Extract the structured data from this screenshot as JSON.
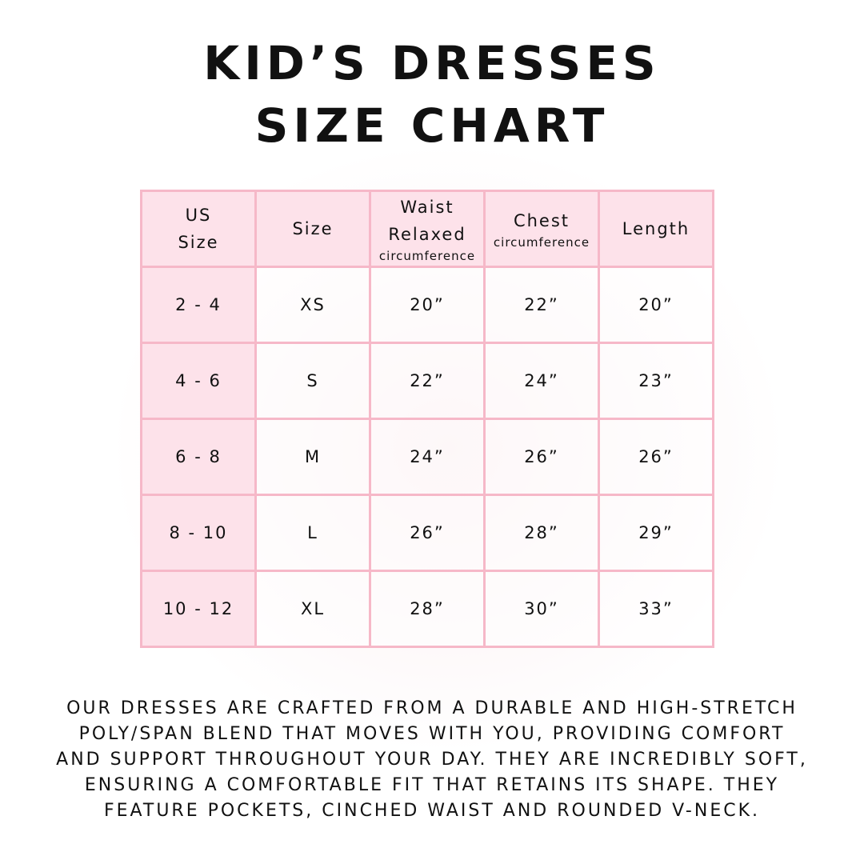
{
  "header": {
    "title_lines": [
      "KID’S DRESSES",
      "SIZE CHART"
    ]
  },
  "table": {
    "columns": [
      {
        "title_lines": [
          "US",
          "Size"
        ]
      },
      {
        "title_lines": [
          "Size"
        ]
      },
      {
        "title_lines": [
          "Waist",
          "Relaxed"
        ],
        "note": "circumference"
      },
      {
        "title_lines": [
          "Chest"
        ],
        "note": "circumference"
      },
      {
        "title_lines": [
          "Length"
        ]
      }
    ],
    "rows": [
      [
        "2 - 4",
        "XS",
        "20”",
        "22”",
        "20”"
      ],
      [
        "4 - 6",
        "S",
        "22”",
        "24”",
        "23”"
      ],
      [
        "6 - 8",
        "M",
        "24”",
        "26”",
        "26”"
      ],
      [
        "8 - 10",
        "L",
        "26”",
        "28”",
        "29”"
      ],
      [
        "10 - 12",
        "XL",
        "28”",
        "30”",
        "33”"
      ]
    ]
  },
  "footer": {
    "lines": [
      "OUR DRESSES ARE CRAFTED FROM A DURABLE AND HIGH-STRETCH",
      "POLY/SPAN BLEND THAT MOVES WITH YOU, PROVIDING COMFORT",
      "AND SUPPORT THROUGHOUT YOUR DAY. THEY ARE INCREDIBLY SOFT,",
      "ENSURING A COMFORTABLE FIT THAT RETAINS ITS SHAPE. THEY",
      "FEATURE POCKETS, CINCHED WAIST AND ROUNDED V-NECK."
    ]
  }
}
